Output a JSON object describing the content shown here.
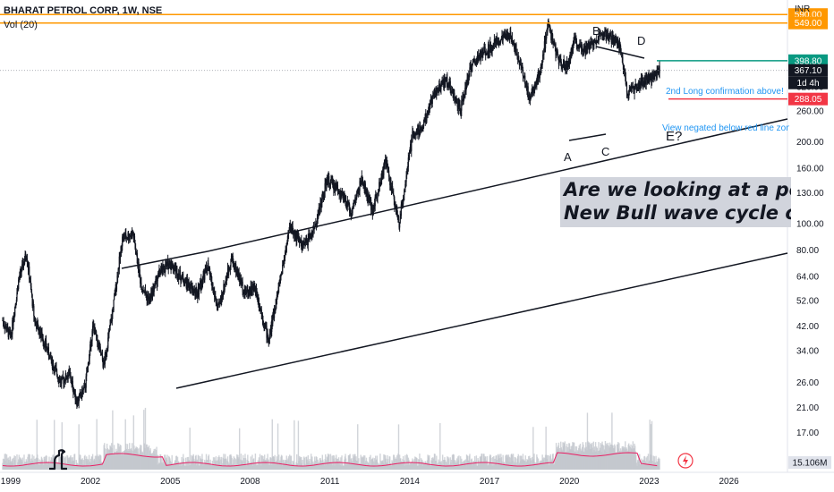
{
  "header": {
    "symbol_line": "BHARAT PETROL CORP, 1W, NSE",
    "volume_label": "Vol (20)",
    "currency": "INR"
  },
  "colors": {
    "up": "#26a69a",
    "candle": "#131722",
    "resistance": "#ff9800",
    "confirm": "#089981",
    "negate": "#f23645",
    "volume_ma": "#e91e63",
    "annotation": "#2196f3",
    "note_bg": "#d1d4dc"
  },
  "annotations": {
    "note_line1": "Are we looking at a poss",
    "note_line2": "New Bull wave cycle on",
    "wave_a": "A",
    "wave_b": "B",
    "wave_c": "C",
    "wave_d": "D",
    "wave_e": "E?",
    "confirm_text": "2nd Long confirmation above!",
    "negate_text": "View negated below red line zone"
  },
  "price_tags": {
    "res_high": "590.00",
    "res_low": "549.00",
    "confirm": "398.80",
    "last": "367.10",
    "countdown": "1d 4h",
    "negate": "288.05",
    "volume": "15.106M"
  },
  "chart_data": {
    "type": "line",
    "title": "BHARAT PETROL CORP, 1W, NSE",
    "xlabel": "",
    "ylabel": "",
    "y_scale": "log",
    "ylim": [
      15,
      600
    ],
    "xlim": [
      1998.6,
      2028.2
    ],
    "y_ticks": [
      "17.00",
      "21.00",
      "26.00",
      "34.00",
      "42.00",
      "52.00",
      "64.00",
      "80.00",
      "100.00",
      "130.00",
      "160.00",
      "200.00",
      "260.00",
      "320.00"
    ],
    "x_ticks": [
      "1999",
      "2002",
      "2005",
      "2008",
      "2011",
      "2014",
      "2017",
      "2020",
      "2023",
      "2026"
    ],
    "series": [
      {
        "name": "",
        "x": [
          1998.7,
          1999.0,
          1999.3,
          1999.6,
          1999.9,
          2000.3,
          2000.6,
          2000.9,
          2001.2,
          2001.5,
          2001.8,
          2002.1,
          2002.5,
          2002.8,
          2003.2,
          2003.6,
          2003.9,
          2004.2,
          2004.6,
          2005.0,
          2005.5,
          2006.0,
          2006.4,
          2006.8,
          2007.3,
          2007.8,
          2008.2,
          2008.7,
          2009.1,
          2009.5,
          2010.0,
          2010.4,
          2010.9,
          2011.3,
          2011.8,
          2012.2,
          2012.6,
          2013.1,
          2013.6,
          2014.1,
          2014.5,
          2014.9,
          2015.4,
          2015.9,
          2016.3,
          2016.8,
          2017.3,
          2017.8,
          2018.2,
          2018.5,
          2018.9,
          2019.2,
          2019.6,
          2019.9,
          2020.2,
          2020.6,
          2021.0,
          2021.4,
          2021.9,
          2022.2,
          2022.5,
          2022.9,
          2023.2,
          2023.4
        ],
        "y": [
          44,
          38,
          62,
          78,
          44,
          36,
          30,
          26,
          28,
          22,
          25,
          42,
          30,
          45,
          88,
          92,
          60,
          52,
          66,
          72,
          62,
          55,
          70,
          48,
          75,
          56,
          58,
          37,
          60,
          98,
          82,
          95,
          145,
          135,
          110,
          145,
          112,
          170,
          100,
          210,
          230,
          300,
          340,
          260,
          380,
          430,
          470,
          500,
          380,
          290,
          360,
          540,
          400,
          380,
          470,
          440,
          480,
          500,
          450,
          300,
          320,
          340,
          350,
          367
        ]
      }
    ],
    "resistance": [
      590.0,
      549.0
    ],
    "confirm_level": 398.8,
    "negate_level": 288.05,
    "last_price": 367.1,
    "volume_last": "15.106M"
  }
}
